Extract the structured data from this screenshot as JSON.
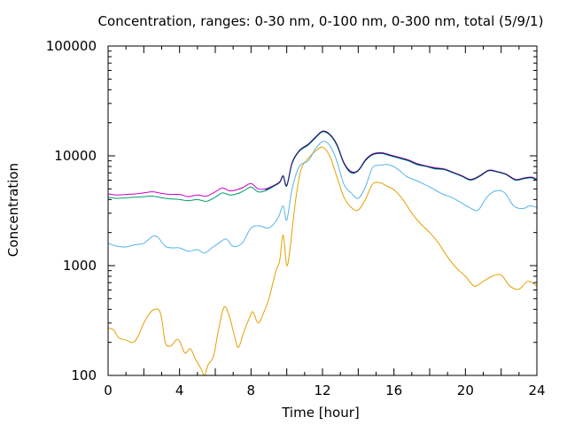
{
  "chart_data": {
    "type": "line",
    "title": "Concentration, ranges: 0-30 nm, 0-100 nm, 0-300 nm, total (5/9/1)",
    "xlabel": "Time [hour]",
    "ylabel": "Concentration",
    "xlim": [
      0,
      24
    ],
    "ylim": [
      100,
      100000
    ],
    "yscale": "log",
    "grid": false,
    "legend": "none",
    "xticks": [
      0,
      4,
      8,
      12,
      16,
      20,
      24
    ],
    "xtick_labels": [
      "0",
      "4",
      "8",
      "12",
      "16",
      "20",
      "24"
    ],
    "yticks": [
      100,
      1000,
      10000,
      100000
    ],
    "ytick_labels": [
      "100",
      "1000",
      "10000",
      "100000"
    ],
    "series": [
      {
        "color": "#e69f00",
        "points": [
          [
            0,
            270
          ],
          [
            0.3,
            260
          ],
          [
            0.6,
            220
          ],
          [
            1,
            210
          ],
          [
            1.4,
            200
          ],
          [
            1.7,
            230
          ],
          [
            2,
            300
          ],
          [
            2.4,
            380
          ],
          [
            2.8,
            400
          ],
          [
            3,
            330
          ],
          [
            3.2,
            200
          ],
          [
            3.5,
            185
          ],
          [
            3.8,
            210
          ],
          [
            4,
            205
          ],
          [
            4.3,
            160
          ],
          [
            4.6,
            175
          ],
          [
            4.9,
            140
          ],
          [
            5.2,
            115
          ],
          [
            5.4,
            100
          ],
          [
            5.6,
            125
          ],
          [
            5.9,
            150
          ],
          [
            6.2,
            270
          ],
          [
            6.5,
            420
          ],
          [
            6.8,
            340
          ],
          [
            7.1,
            220
          ],
          [
            7.3,
            180
          ],
          [
            7.6,
            250
          ],
          [
            7.9,
            330
          ],
          [
            8.1,
            380
          ],
          [
            8.4,
            300
          ],
          [
            8.7,
            370
          ],
          [
            9,
            500
          ],
          [
            9.4,
            900
          ],
          [
            9.6,
            1100
          ],
          [
            9.8,
            1900
          ],
          [
            10,
            1000
          ],
          [
            10.2,
            1500
          ],
          [
            10.5,
            4000
          ],
          [
            10.8,
            7500
          ],
          [
            11.2,
            9500
          ],
          [
            11.6,
            11000
          ],
          [
            12,
            12000
          ],
          [
            12.4,
            10000
          ],
          [
            12.8,
            6500
          ],
          [
            13.2,
            4200
          ],
          [
            13.6,
            3400
          ],
          [
            14,
            3200
          ],
          [
            14.4,
            4000
          ],
          [
            14.8,
            5500
          ],
          [
            15.2,
            5700
          ],
          [
            15.6,
            5300
          ],
          [
            16,
            4900
          ],
          [
            16.5,
            4000
          ],
          [
            17,
            3000
          ],
          [
            17.5,
            2400
          ],
          [
            18,
            2000
          ],
          [
            18.5,
            1600
          ],
          [
            19,
            1200
          ],
          [
            19.5,
            950
          ],
          [
            20,
            800
          ],
          [
            20.5,
            650
          ],
          [
            21,
            720
          ],
          [
            21.5,
            800
          ],
          [
            22,
            820
          ],
          [
            22.5,
            650
          ],
          [
            23,
            610
          ],
          [
            23.5,
            720
          ],
          [
            24,
            650
          ]
        ]
      },
      {
        "color": "#56b4e9",
        "points": [
          [
            0,
            1600
          ],
          [
            0.5,
            1500
          ],
          [
            1,
            1480
          ],
          [
            1.5,
            1550
          ],
          [
            2,
            1600
          ],
          [
            2.5,
            1850
          ],
          [
            2.8,
            1800
          ],
          [
            3.2,
            1500
          ],
          [
            3.6,
            1450
          ],
          [
            4,
            1450
          ],
          [
            4.5,
            1350
          ],
          [
            5,
            1400
          ],
          [
            5.4,
            1300
          ],
          [
            5.8,
            1450
          ],
          [
            6.2,
            1600
          ],
          [
            6.6,
            1750
          ],
          [
            7,
            1500
          ],
          [
            7.5,
            1600
          ],
          [
            8,
            2200
          ],
          [
            8.5,
            2300
          ],
          [
            9,
            2200
          ],
          [
            9.5,
            2700
          ],
          [
            9.8,
            3500
          ],
          [
            10,
            2600
          ],
          [
            10.3,
            5000
          ],
          [
            10.7,
            8000
          ],
          [
            11.2,
            9000
          ],
          [
            11.6,
            11500
          ],
          [
            12,
            13500
          ],
          [
            12.4,
            12500
          ],
          [
            12.8,
            9000
          ],
          [
            13.2,
            5500
          ],
          [
            13.6,
            4600
          ],
          [
            14,
            4100
          ],
          [
            14.4,
            5200
          ],
          [
            14.8,
            7800
          ],
          [
            15.2,
            8200
          ],
          [
            15.7,
            8300
          ],
          [
            16.2,
            7600
          ],
          [
            16.7,
            6500
          ],
          [
            17.2,
            6000
          ],
          [
            17.7,
            5500
          ],
          [
            18.2,
            5000
          ],
          [
            18.7,
            4500
          ],
          [
            19.2,
            4200
          ],
          [
            19.7,
            3800
          ],
          [
            20.2,
            3400
          ],
          [
            20.7,
            3200
          ],
          [
            21.2,
            4200
          ],
          [
            21.7,
            4800
          ],
          [
            22.2,
            4600
          ],
          [
            22.7,
            3500
          ],
          [
            23.2,
            3300
          ],
          [
            23.6,
            3500
          ],
          [
            24,
            3400
          ]
        ]
      },
      {
        "color": "#009e73",
        "points": [
          [
            0,
            4200
          ],
          [
            0.5,
            4100
          ],
          [
            1,
            4150
          ],
          [
            1.5,
            4200
          ],
          [
            2,
            4250
          ],
          [
            2.5,
            4300
          ],
          [
            3,
            4150
          ],
          [
            3.5,
            4050
          ],
          [
            4,
            4000
          ],
          [
            4.5,
            3900
          ],
          [
            5,
            4000
          ],
          [
            5.5,
            3850
          ],
          [
            6,
            4200
          ],
          [
            6.4,
            4600
          ],
          [
            6.8,
            4400
          ],
          [
            7.2,
            4500
          ],
          [
            7.6,
            4800
          ],
          [
            8,
            5200
          ],
          [
            8.4,
            4700
          ],
          [
            8.8,
            4800
          ],
          [
            9.2,
            5200
          ],
          [
            9.6,
            5700
          ],
          [
            9.8,
            6500
          ],
          [
            10,
            5300
          ],
          [
            10.3,
            8500
          ],
          [
            10.7,
            11000
          ],
          [
            11.2,
            12500
          ],
          [
            11.6,
            14500
          ],
          [
            12,
            16500
          ],
          [
            12.4,
            15500
          ],
          [
            12.8,
            12500
          ],
          [
            13.2,
            8500
          ],
          [
            13.6,
            7000
          ],
          [
            14,
            7300
          ],
          [
            14.4,
            9000
          ],
          [
            14.8,
            10200
          ],
          [
            15.3,
            10500
          ],
          [
            15.8,
            10000
          ],
          [
            16.3,
            9500
          ],
          [
            16.8,
            9000
          ],
          [
            17.3,
            8300
          ],
          [
            17.8,
            8000
          ],
          [
            18.3,
            7600
          ],
          [
            18.8,
            7500
          ],
          [
            19.3,
            7000
          ],
          [
            19.8,
            6500
          ],
          [
            20.3,
            6000
          ],
          [
            20.8,
            6500
          ],
          [
            21.3,
            7300
          ],
          [
            21.8,
            7100
          ],
          [
            22.3,
            6700
          ],
          [
            22.8,
            6000
          ],
          [
            23.3,
            6200
          ],
          [
            23.7,
            6300
          ],
          [
            24,
            6000
          ]
        ]
      },
      {
        "color": "#cc00cc",
        "points": [
          [
            0,
            4500
          ],
          [
            0.5,
            4400
          ],
          [
            1,
            4450
          ],
          [
            1.5,
            4500
          ],
          [
            2,
            4600
          ],
          [
            2.5,
            4700
          ],
          [
            3,
            4550
          ],
          [
            3.5,
            4450
          ],
          [
            4,
            4450
          ],
          [
            4.5,
            4250
          ],
          [
            5,
            4400
          ],
          [
            5.5,
            4300
          ],
          [
            6,
            4700
          ],
          [
            6.4,
            5100
          ],
          [
            6.8,
            4800
          ],
          [
            7.2,
            4900
          ],
          [
            7.6,
            5200
          ],
          [
            8,
            5600
          ],
          [
            8.4,
            5000
          ],
          [
            8.8,
            5000
          ],
          [
            9.2,
            5300
          ],
          [
            9.6,
            5800
          ],
          [
            9.8,
            6600
          ],
          [
            10,
            5400
          ],
          [
            10.3,
            8700
          ],
          [
            10.7,
            11200
          ],
          [
            11.2,
            12800
          ],
          [
            11.6,
            14800
          ],
          [
            12,
            16800
          ],
          [
            12.4,
            15800
          ],
          [
            12.8,
            12800
          ],
          [
            13.2,
            8700
          ],
          [
            13.6,
            7200
          ],
          [
            14,
            7400
          ],
          [
            14.4,
            9200
          ],
          [
            14.8,
            10400
          ],
          [
            15.3,
            10700
          ],
          [
            15.8,
            10200
          ],
          [
            16.3,
            9700
          ],
          [
            16.8,
            9200
          ],
          [
            17.3,
            8500
          ],
          [
            17.8,
            8100
          ],
          [
            18.3,
            7800
          ],
          [
            18.8,
            7600
          ],
          [
            19.3,
            7100
          ],
          [
            19.8,
            6600
          ],
          [
            20.3,
            6100
          ],
          [
            20.8,
            6600
          ],
          [
            21.3,
            7400
          ],
          [
            21.8,
            7200
          ],
          [
            22.3,
            6800
          ],
          [
            22.8,
            6100
          ],
          [
            23.3,
            6300
          ],
          [
            23.7,
            6400
          ],
          [
            24,
            6100
          ]
        ]
      },
      {
        "color": "#0a2a66",
        "points": [
          [
            8.8,
            4900
          ],
          [
            9.2,
            5250
          ],
          [
            9.6,
            5750
          ],
          [
            9.8,
            6550
          ],
          [
            10,
            5350
          ],
          [
            10.3,
            8600
          ],
          [
            10.7,
            11100
          ],
          [
            11.2,
            12700
          ],
          [
            11.6,
            14700
          ],
          [
            12,
            16700
          ],
          [
            12.4,
            15700
          ],
          [
            12.8,
            12700
          ],
          [
            13.2,
            8600
          ],
          [
            13.6,
            7100
          ],
          [
            14,
            7350
          ],
          [
            14.4,
            9100
          ],
          [
            14.8,
            10300
          ],
          [
            15.3,
            10600
          ],
          [
            15.8,
            10100
          ],
          [
            16.3,
            9600
          ],
          [
            16.8,
            9100
          ],
          [
            17.3,
            8400
          ],
          [
            17.8,
            8050
          ],
          [
            18.3,
            7700
          ],
          [
            18.8,
            7550
          ],
          [
            19.3,
            7050
          ],
          [
            19.8,
            6550
          ],
          [
            20.3,
            6050
          ],
          [
            20.8,
            6550
          ],
          [
            21.3,
            7350
          ],
          [
            21.8,
            7150
          ],
          [
            22.3,
            6750
          ],
          [
            22.8,
            6050
          ],
          [
            23.3,
            6250
          ],
          [
            23.7,
            6350
          ],
          [
            24,
            6050
          ]
        ]
      }
    ]
  }
}
